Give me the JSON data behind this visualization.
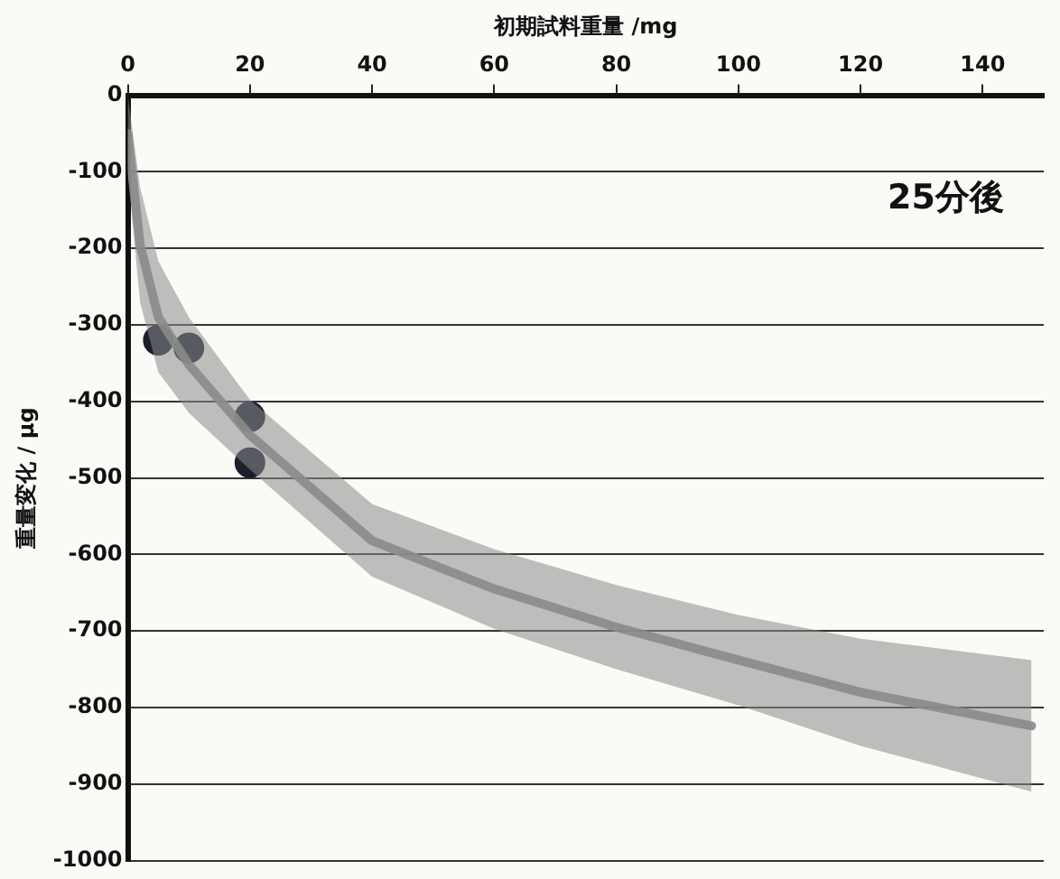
{
  "chart_data": {
    "type": "scatter",
    "xlabel": "初期試料重量 /mg",
    "ylabel": "重量変化 / μg",
    "annotations": [
      "25分後"
    ],
    "xlim": [
      0,
      150
    ],
    "xticks": [
      0,
      20,
      40,
      60,
      80,
      100,
      120,
      140
    ],
    "ylim": [
      -1000,
      0
    ],
    "yticks": [
      -1000,
      -900,
      -800,
      -700,
      -600,
      -500,
      -400,
      -300,
      -200,
      -100,
      0
    ],
    "grid": "y",
    "legend": false,
    "series": [
      {
        "type": "line",
        "color": "#8a8a8a",
        "x": [
          0,
          2,
          5,
          10,
          20,
          40,
          60,
          80,
          100,
          120,
          148
        ],
        "values": [
          -50,
          -195,
          -290,
          -352,
          -444,
          -582,
          -645,
          -695,
          -738,
          -780,
          -824
        ],
        "lower": [
          -100,
          -270,
          -362,
          -415,
          -489,
          -629,
          -697,
          -750,
          -797,
          -850,
          -910
        ],
        "upper": [
          0,
          -120,
          -217,
          -290,
          -398,
          -534,
          -593,
          -640,
          -679,
          -710,
          -738
        ]
      },
      {
        "type": "scatter",
        "marker": "circle",
        "color": "#1a1f2e",
        "x": [
          5,
          10,
          20,
          20
        ],
        "values": [
          -320,
          -330,
          -420,
          -480
        ]
      }
    ]
  }
}
